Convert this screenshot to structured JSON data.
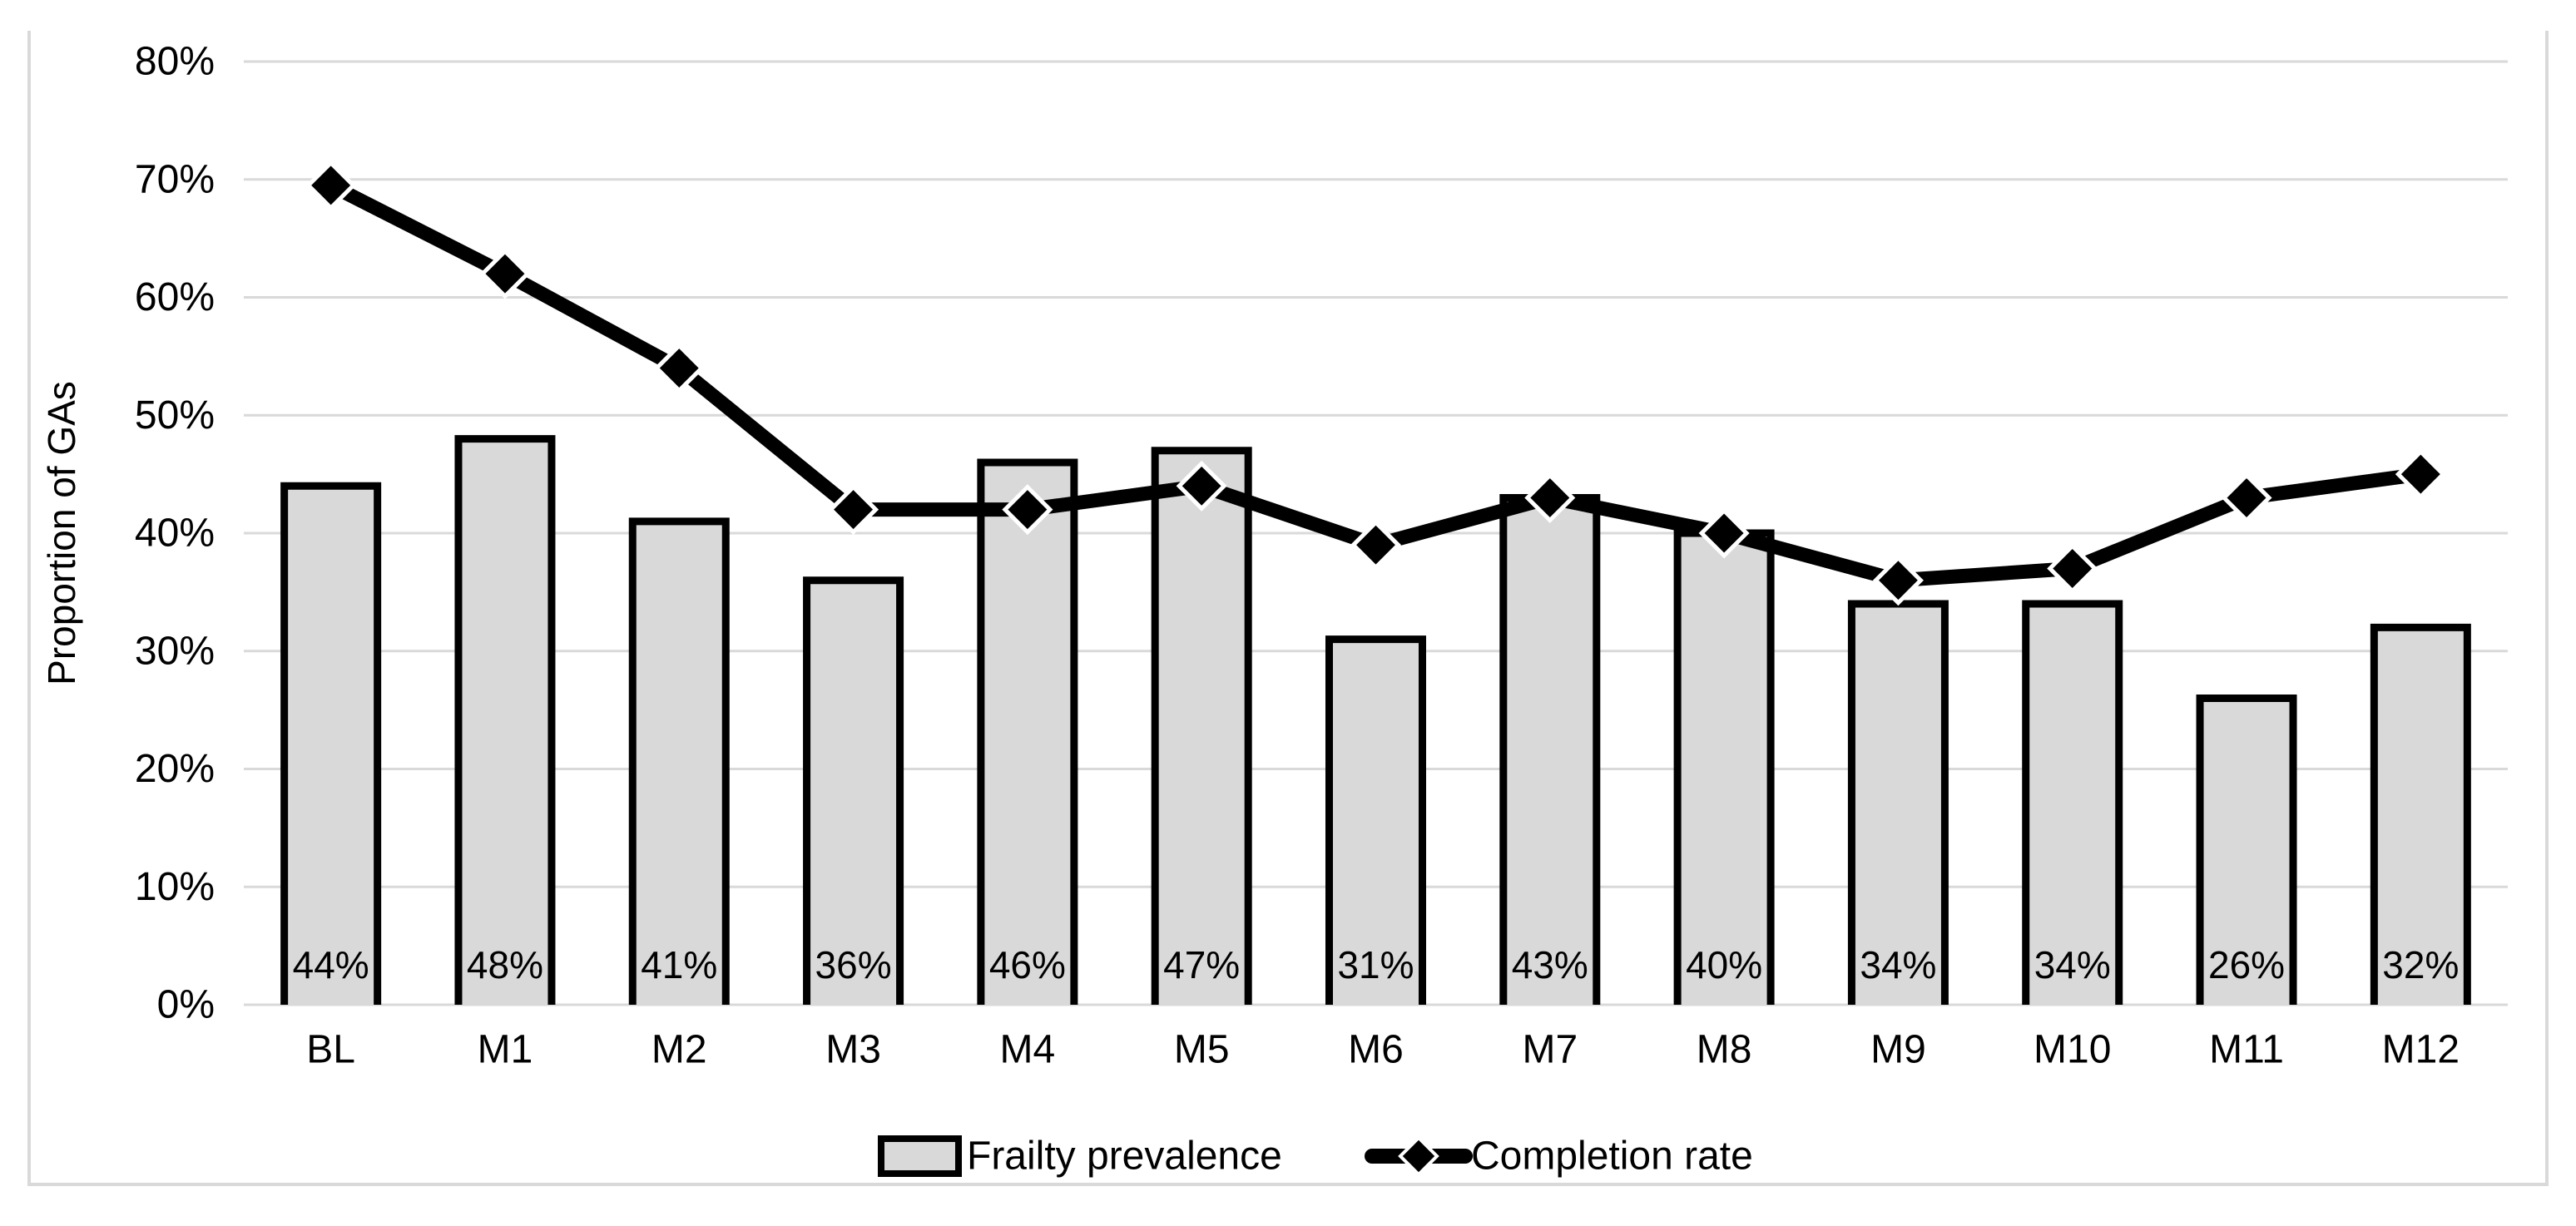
{
  "figure": {
    "background": "#ffffff",
    "frame_color": "#d9d9d9"
  },
  "chart_data": {
    "type": "combo-bar-line",
    "categories": [
      "BL",
      "M1",
      "M2",
      "M3",
      "M4",
      "M5",
      "M6",
      "M7",
      "M8",
      "M9",
      "M10",
      "M11",
      "M12"
    ],
    "series": [
      {
        "name": "Frailty prevalence",
        "type": "bar",
        "values": [
          44,
          48,
          41,
          36,
          46,
          47,
          31,
          43,
          40,
          34,
          34,
          26,
          32
        ],
        "data_labels": [
          "44%",
          "48%",
          "41%",
          "36%",
          "46%",
          "47%",
          "31%",
          "43%",
          "40%",
          "34%",
          "34%",
          "26%",
          "32%"
        ],
        "fill": "#d9d9d9",
        "border": "#000000"
      },
      {
        "name": "Completion rate",
        "type": "line",
        "values": [
          69.5,
          62,
          54,
          42,
          42,
          44,
          39,
          43,
          40,
          36,
          37,
          43,
          45
        ],
        "color": "#000000",
        "marker": "diamond",
        "marker_fill": "#000000",
        "marker_outline": "#ffffff"
      }
    ],
    "title": "",
    "xlabel": "",
    "ylabel": "Proportion of GAs",
    "ylim": [
      0,
      80
    ],
    "y_step": 10,
    "y_ticks": [
      "0%",
      "10%",
      "20%",
      "30%",
      "40%",
      "50%",
      "60%",
      "70%",
      "80%"
    ],
    "grid": true,
    "gridline_color": "#d9d9d9",
    "text_color": "#000000",
    "legend_position": "bottom-center",
    "legend": [
      "Frailty prevalence",
      "Completion rate"
    ]
  }
}
